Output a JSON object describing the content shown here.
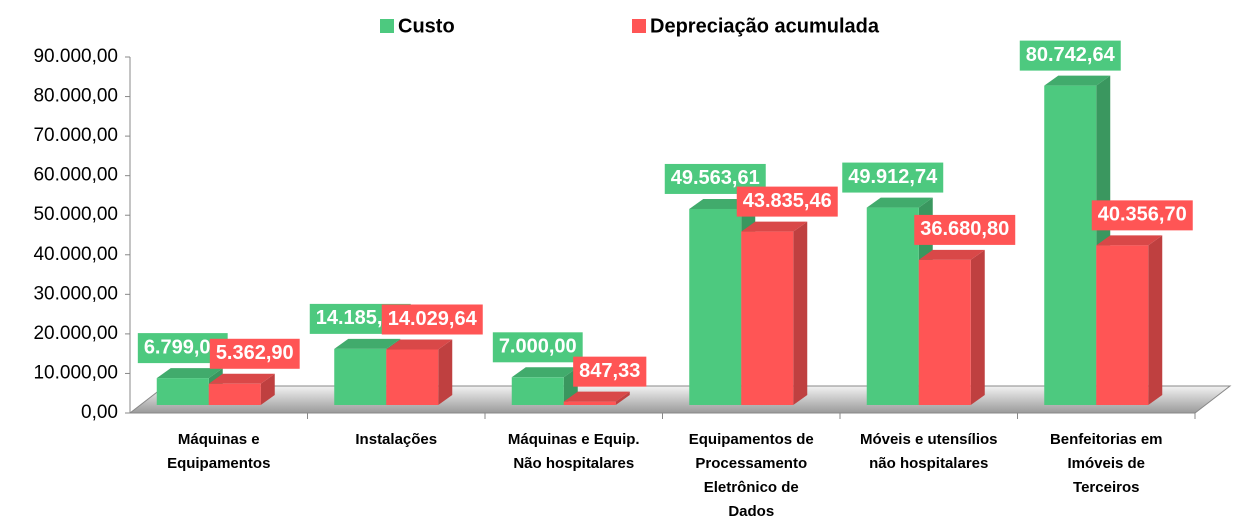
{
  "chart_data": {
    "type": "bar3d",
    "categories": [
      "Máquinas e\nEquipamentos",
      "Instalações",
      "Máquinas e Equip.\nNão hospitalares",
      "Equipamentos de\nProcessamento\nEletrônico de\nDados",
      "Móveis e utensílios\nnão hospitalares",
      "Benfeitorias em\nImóveis de\nTerceiros"
    ],
    "series": [
      {
        "name": "Custo",
        "color": "#4dc97f",
        "values": [
          6799.0,
          14185.17,
          7000.0,
          49563.61,
          49912.74,
          80742.64
        ],
        "value_labels": [
          "6.799,00",
          "14.185,17",
          "7.000,00",
          "49.563,61",
          "49.912,74",
          "80.742,64"
        ]
      },
      {
        "name": "Depreciação acumulada",
        "color": "#ff5555",
        "values": [
          5362.9,
          14029.64,
          847.33,
          43835.46,
          36680.8,
          40356.7
        ],
        "value_labels": [
          "5.362,90",
          "14.029,64",
          "847,33",
          "43.835,46",
          "36.680,80",
          "40.356,70"
        ]
      }
    ],
    "ylim": [
      0,
      90000
    ],
    "yticks": [
      {
        "value": 0,
        "label": "0,00"
      },
      {
        "value": 10000,
        "label": "10.000,00"
      },
      {
        "value": 20000,
        "label": "20.000,00"
      },
      {
        "value": 30000,
        "label": "30.000,00"
      },
      {
        "value": 40000,
        "label": "40.000,00"
      },
      {
        "value": 50000,
        "label": "50.000,00"
      },
      {
        "value": 60000,
        "label": "60.000,00"
      },
      {
        "value": 70000,
        "label": "70.000,00"
      },
      {
        "value": 80000,
        "label": "80.000,00"
      },
      {
        "value": 90000,
        "label": "90.000,00"
      }
    ],
    "legend": "top"
  }
}
